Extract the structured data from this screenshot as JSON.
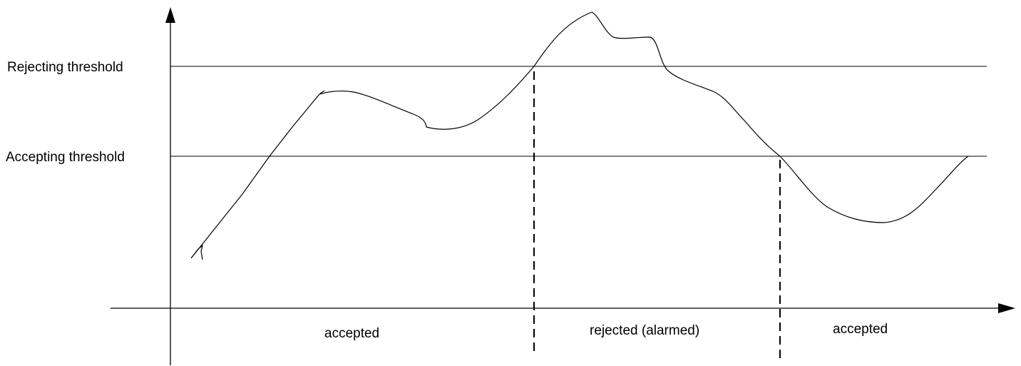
{
  "thresholds": {
    "rejecting": "Rejecting threshold",
    "accepting": "Accepting threshold"
  },
  "regions": [
    {
      "label": "accepted"
    },
    {
      "label": "rejected (alarmed)"
    },
    {
      "label": "accepted"
    }
  ],
  "colors": {
    "line": "#000000",
    "background": "#ffffff"
  }
}
